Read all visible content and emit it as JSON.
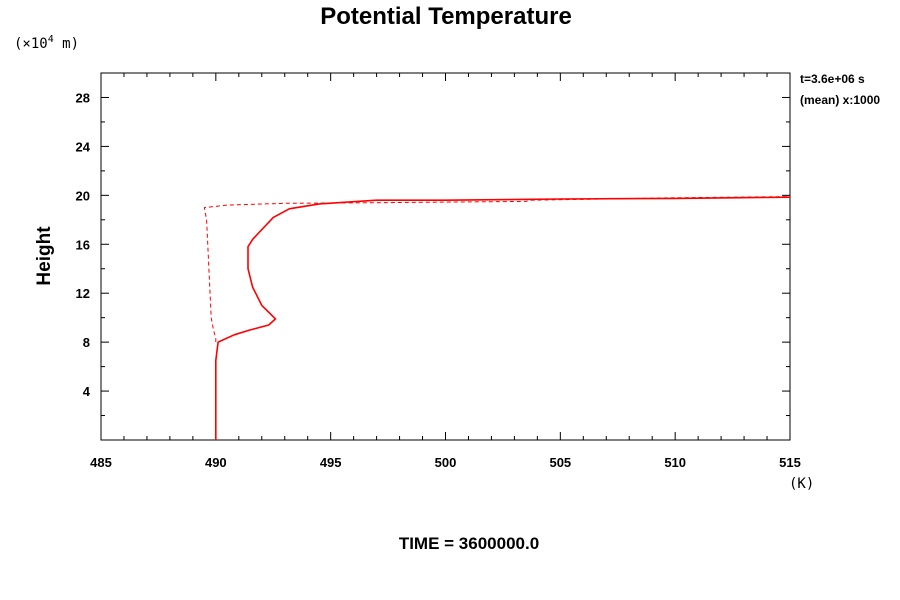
{
  "chart_data": {
    "type": "line",
    "title": "Potential Temperature",
    "xlabel": "",
    "ylabel": "Height",
    "x_unit": "(K)",
    "y_unit_prefix": "(×10",
    "y_unit_exp": "4",
    "y_unit_suffix": " m)",
    "xlim": [
      485,
      515
    ],
    "ylim": [
      0,
      30
    ],
    "xticks": [
      "485",
      "490",
      "495",
      "500",
      "505",
      "510",
      "515"
    ],
    "yticks": [
      "4",
      "8",
      "12",
      "16",
      "20",
      "24",
      "28"
    ],
    "annotations": [
      "t=3.6e+06 s",
      "(mean) x:1000"
    ],
    "footer": "TIME = 3600000.0",
    "color": "#ff0000",
    "grid": false,
    "series": [
      {
        "style": "solid",
        "x": [
          490.0,
          490.0,
          490.1,
          490.8,
          491.5,
          492.3,
          492.6,
          492.0,
          491.6,
          491.4,
          491.4,
          491.6,
          491.9,
          492.5,
          493.2,
          494.5,
          497,
          500,
          505,
          510,
          515
        ],
        "y": [
          0,
          6.5,
          8.0,
          8.6,
          9.0,
          9.4,
          9.9,
          11.0,
          12.5,
          14.0,
          15.8,
          16.4,
          17.0,
          18.2,
          18.9,
          19.3,
          19.6,
          19.6,
          19.7,
          19.75,
          19.85
        ]
      },
      {
        "style": "dashed",
        "x": [
          490.0,
          490.0,
          489.9,
          489.8,
          489.7,
          489.6,
          489.5,
          490.5,
          493,
          497,
          500,
          503.5,
          503.7,
          510,
          515
        ],
        "y": [
          8.0,
          8.3,
          9.0,
          10.0,
          14.0,
          18.0,
          19.0,
          19.2,
          19.35,
          19.4,
          19.45,
          19.5,
          19.6,
          19.8,
          19.9
        ]
      }
    ]
  }
}
